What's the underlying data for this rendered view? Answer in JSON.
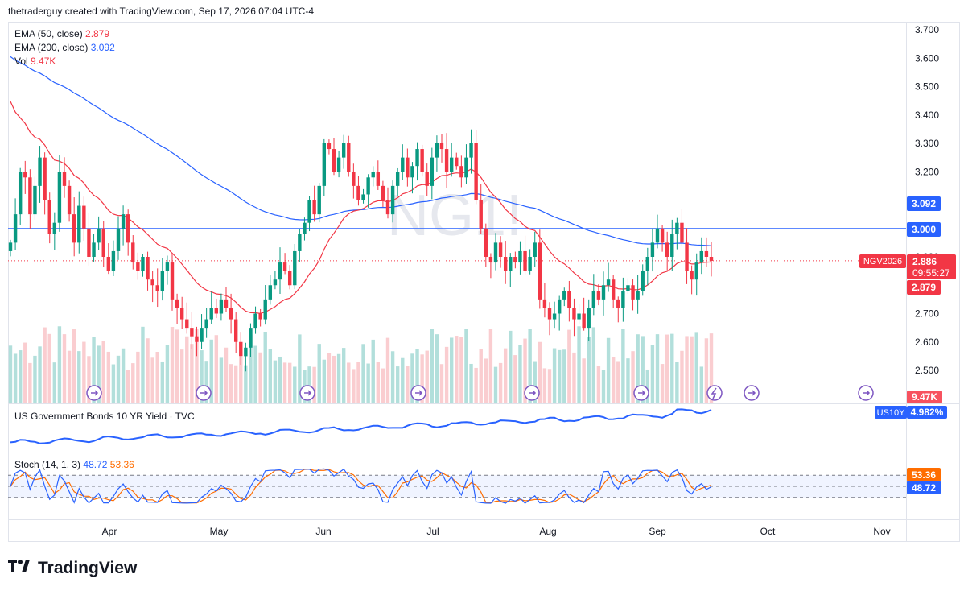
{
  "header": {
    "text": "thetraderguy created with TradingView.com, Sep 17, 2026 07:04 UTC-4"
  },
  "watermark": "NG1!",
  "legend_main": [
    {
      "label": "EMA (50, close)",
      "value": "2.879",
      "color": "#f23645"
    },
    {
      "label": "EMA (200, close)",
      "value": "3.092",
      "color": "#2962ff"
    },
    {
      "label": "Vol",
      "value": "9.47K",
      "color": "#f23645"
    }
  ],
  "legend_bonds": {
    "label": "US Government Bonds 10 YR Yield · TVC"
  },
  "legend_stoch": {
    "label": "Stoch (14, 1, 3)",
    "k": "48.72",
    "d": "53.36",
    "k_color": "#2962ff",
    "d_color": "#ff6d00"
  },
  "price_labels": {
    "ema200": "3.092",
    "level": "3.000",
    "symbol": "NGV2026",
    "last": "2.886",
    "countdown": "09:55:27",
    "ema50": "2.879",
    "vol": "9.47K",
    "us10y_symbol": "US10Y",
    "us10y_value": "4.982%",
    "stoch_d": "53.36",
    "stoch_k": "48.72"
  },
  "brand": "TradingView",
  "colors": {
    "up": "#089981",
    "down": "#f23645",
    "ema50": "#f23645",
    "ema200": "#2962ff",
    "bond": "#2962ff",
    "stoch_k": "#2962ff",
    "stoch_d": "#ff6d00",
    "level": "#2962ff"
  },
  "chart_data": {
    "type": "candlestick",
    "xlabels": [
      "Apr",
      "May",
      "Jun",
      "Jul",
      "Aug",
      "Sep",
      "Oct",
      "Nov"
    ],
    "yticks": [
      "3.700",
      "3.600",
      "3.500",
      "3.400",
      "3.300",
      "3.200",
      "3.000",
      "2.900",
      "2.700",
      "2.600",
      "2.500"
    ],
    "ylim": [
      2.39,
      3.73
    ],
    "horizontal_line": 3.0,
    "last_price": 2.886,
    "ema50_last": 2.879,
    "ema200_last": 3.092,
    "stoch": {
      "k": 48.72,
      "d": 53.36,
      "bands": [
        20,
        50,
        80
      ]
    },
    "us10y_last": 4.982,
    "closes": [
      2.95,
      3.05,
      3.2,
      3.18,
      3.05,
      3.15,
      3.25,
      3.1,
      2.98,
      3.02,
      3.2,
      3.15,
      3.05,
      2.95,
      3.08,
      3.0,
      2.9,
      2.95,
      3.0,
      2.9,
      2.85,
      2.92,
      3.0,
      3.05,
      2.95,
      2.88,
      2.85,
      2.9,
      2.82,
      2.8,
      2.78,
      2.85,
      2.88,
      2.75,
      2.72,
      2.68,
      2.65,
      2.62,
      2.6,
      2.65,
      2.68,
      2.72,
      2.7,
      2.75,
      2.72,
      2.68,
      2.6,
      2.55,
      2.58,
      2.65,
      2.7,
      2.68,
      2.75,
      2.8,
      2.82,
      2.88,
      2.85,
      2.8,
      2.92,
      2.98,
      3.02,
      3.1,
      3.05,
      3.15,
      3.3,
      3.28,
      3.2,
      3.25,
      3.3,
      3.2,
      3.15,
      3.1,
      3.12,
      3.18,
      3.2,
      3.15,
      3.1,
      3.05,
      3.15,
      3.2,
      3.25,
      3.18,
      3.22,
      3.28,
      3.2,
      3.15,
      3.25,
      3.3,
      3.28,
      3.2,
      3.25,
      3.22,
      3.18,
      3.25,
      3.3,
      3.1,
      3.0,
      2.9,
      2.88,
      2.95,
      2.9,
      2.85,
      2.9,
      2.88,
      2.92,
      2.85,
      2.9,
      2.95,
      2.75,
      2.72,
      2.68,
      2.7,
      2.75,
      2.78,
      2.72,
      2.68,
      2.7,
      2.65,
      2.72,
      2.78,
      2.75,
      2.8,
      2.82,
      2.75,
      2.72,
      2.78,
      2.8,
      2.75,
      2.78,
      2.85,
      2.9,
      2.95,
      3.0,
      2.95,
      2.9,
      2.98,
      3.02,
      2.95,
      2.85,
      2.82,
      2.88,
      2.92,
      2.9,
      2.886
    ]
  }
}
